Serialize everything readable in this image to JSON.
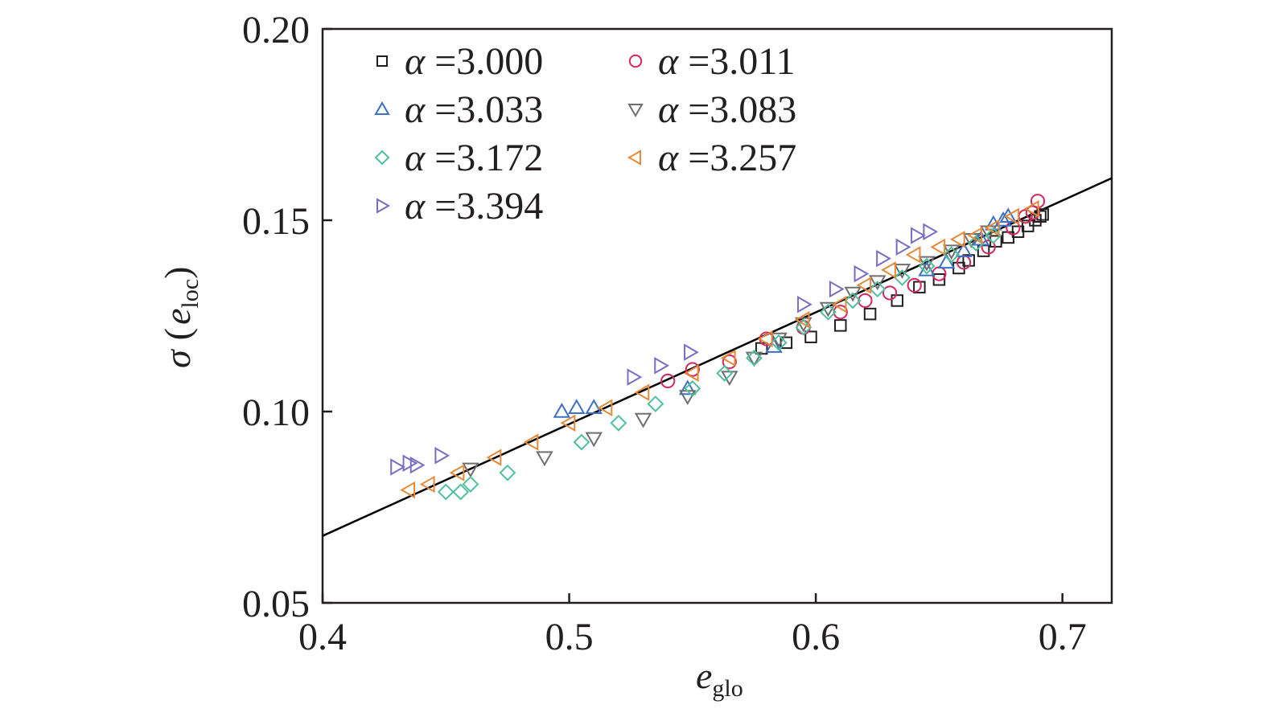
{
  "chart_data": {
    "type": "scatter",
    "xlabel_main": "e",
    "xlabel_sub": "glo",
    "ylabel_main": "σ",
    "ylabel_paren_open": "(",
    "ylabel_inner": "e",
    "ylabel_sub": "loc",
    "ylabel_paren_close": ")",
    "xlim": [
      0.4,
      0.72
    ],
    "ylim": [
      0.05,
      0.2
    ],
    "xticks": [
      "0.4",
      "0.5",
      "0.6",
      "0.7"
    ],
    "yticks": [
      "0.05",
      "0.10",
      "0.15",
      "0.20"
    ],
    "legend_position": "top-left",
    "grid": false,
    "fit_line": {
      "x": [
        0.4,
        0.72
      ],
      "y": [
        0.0675,
        0.161
      ],
      "color": "#000000"
    },
    "series": [
      {
        "name": "α =3.000",
        "label_alpha": "α",
        "label_value": " =3.000",
        "marker": "square",
        "color": "#231f20",
        "x": [
          0.578,
          0.588,
          0.598,
          0.61,
          0.622,
          0.633,
          0.642,
          0.65,
          0.658,
          0.662,
          0.668,
          0.673,
          0.678,
          0.682,
          0.686,
          0.689,
          0.691,
          0.692
        ],
        "y": [
          0.1165,
          0.118,
          0.1195,
          0.1225,
          0.1255,
          0.129,
          0.1325,
          0.1345,
          0.1375,
          0.1395,
          0.142,
          0.1445,
          0.1455,
          0.147,
          0.1485,
          0.15,
          0.151,
          0.1515
        ]
      },
      {
        "name": "α =3.011",
        "label_alpha": "α",
        "label_value": " =3.011",
        "marker": "circle",
        "color": "#d5275a",
        "x": [
          0.54,
          0.55,
          0.565,
          0.58,
          0.595,
          0.61,
          0.62,
          0.63,
          0.64,
          0.65,
          0.66,
          0.67,
          0.68,
          0.685,
          0.688,
          0.69
        ],
        "y": [
          0.108,
          0.111,
          0.113,
          0.119,
          0.122,
          0.126,
          0.129,
          0.131,
          0.133,
          0.136,
          0.139,
          0.143,
          0.148,
          0.151,
          0.152,
          0.155
        ]
      },
      {
        "name": "α =3.033",
        "label_alpha": "α",
        "label_value": " =3.033",
        "marker": "triangle-up",
        "color": "#3d6fc4",
        "x": [
          0.497,
          0.503,
          0.51,
          0.548,
          0.583,
          0.645,
          0.653,
          0.66,
          0.667,
          0.672,
          0.676,
          0.678
        ],
        "y": [
          0.1,
          0.101,
          0.101,
          0.106,
          0.117,
          0.137,
          0.139,
          0.142,
          0.145,
          0.149,
          0.15,
          0.151
        ]
      },
      {
        "name": "α =3.083",
        "label_alpha": "α",
        "label_value": " =3.083",
        "marker": "triangle-down",
        "color": "#6e6e6e",
        "x": [
          0.46,
          0.49,
          0.51,
          0.53,
          0.548,
          0.565,
          0.575,
          0.585,
          0.595,
          0.605,
          0.615,
          0.625,
          0.635,
          0.645,
          0.655,
          0.663,
          0.67
        ],
        "y": [
          0.085,
          0.088,
          0.093,
          0.098,
          0.104,
          0.109,
          0.114,
          0.119,
          0.123,
          0.127,
          0.131,
          0.134,
          0.137,
          0.139,
          0.142,
          0.145,
          0.147
        ]
      },
      {
        "name": "α =3.172",
        "label_alpha": "α",
        "label_value": " =3.172",
        "marker": "diamond",
        "color": "#4fbfa0",
        "x": [
          0.45,
          0.456,
          0.46,
          0.475,
          0.505,
          0.52,
          0.535,
          0.55,
          0.563,
          0.575,
          0.585,
          0.595,
          0.605,
          0.615,
          0.625,
          0.635,
          0.645,
          0.655,
          0.665,
          0.672
        ],
        "y": [
          0.079,
          0.079,
          0.081,
          0.084,
          0.092,
          0.097,
          0.102,
          0.106,
          0.11,
          0.114,
          0.118,
          0.122,
          0.126,
          0.129,
          0.132,
          0.135,
          0.138,
          0.141,
          0.144,
          0.146
        ]
      },
      {
        "name": "α =3.257",
        "label_alpha": "α",
        "label_value": " =3.257",
        "marker": "triangle-left",
        "color": "#e48a3a",
        "x": [
          0.435,
          0.443,
          0.455,
          0.47,
          0.485,
          0.5,
          0.515,
          0.53,
          0.55,
          0.565,
          0.58,
          0.595,
          0.61,
          0.62,
          0.63,
          0.64,
          0.65,
          0.658,
          0.665,
          0.672,
          0.68,
          0.688
        ],
        "y": [
          0.0795,
          0.081,
          0.084,
          0.088,
          0.092,
          0.097,
          0.101,
          0.105,
          0.11,
          0.114,
          0.119,
          0.124,
          0.128,
          0.133,
          0.137,
          0.141,
          0.143,
          0.145,
          0.146,
          0.148,
          0.151,
          0.153
        ]
      },
      {
        "name": "α =3.394",
        "label_alpha": "α",
        "label_value": " =3.394",
        "marker": "triangle-right",
        "color": "#7b6cc4",
        "x": [
          0.43,
          0.435,
          0.438,
          0.448,
          0.526,
          0.537,
          0.549,
          0.595,
          0.608,
          0.618,
          0.627,
          0.635,
          0.641,
          0.646
        ],
        "y": [
          0.0855,
          0.0865,
          0.086,
          0.0885,
          0.109,
          0.112,
          0.1155,
          0.128,
          0.132,
          0.136,
          0.14,
          0.143,
          0.146,
          0.147
        ]
      }
    ]
  }
}
